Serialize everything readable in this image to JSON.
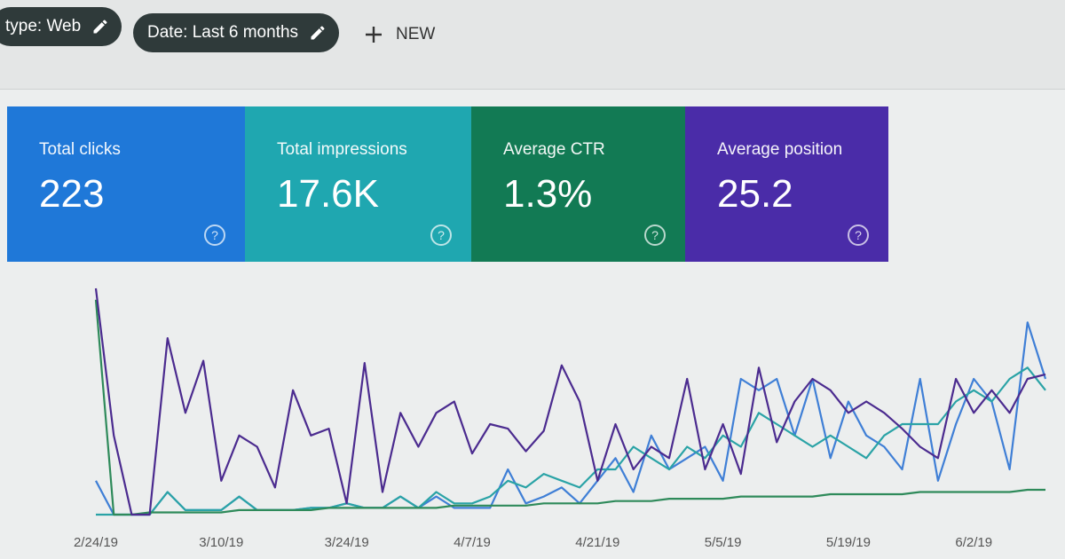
{
  "filters": [
    {
      "label": "type: Web"
    },
    {
      "label": "Date: Last 6 months"
    }
  ],
  "new_button": "NEW",
  "metrics": [
    {
      "label": "Total clicks",
      "value": "223",
      "color": "#1f78d8"
    },
    {
      "label": "Total impressions",
      "value": "17.6K",
      "color": "#1fa7b0"
    },
    {
      "label": "Average CTR",
      "value": "1.3%",
      "color": "#127a54"
    },
    {
      "label": "Average position",
      "value": "25.2",
      "color": "#4a2ca8"
    }
  ],
  "chart_data": {
    "type": "line",
    "categories": [
      "2/24/19",
      null,
      null,
      null,
      null,
      null,
      null,
      "3/10/19",
      null,
      null,
      null,
      null,
      null,
      null,
      "3/24/19",
      null,
      null,
      null,
      null,
      null,
      null,
      "4/7/19",
      null,
      null,
      null,
      null,
      null,
      null,
      "4/21/19",
      null,
      null,
      null,
      null,
      null,
      null,
      "5/5/19",
      null,
      null,
      null,
      null,
      null,
      null,
      "5/19/19",
      null,
      null,
      null,
      null,
      null,
      null,
      "6/2/19",
      null,
      null,
      null,
      null
    ],
    "ylim": [
      0,
      100
    ],
    "series": [
      {
        "name": "Total clicks",
        "color": "#3f7fd6",
        "values": [
          15,
          0,
          0,
          0,
          10,
          2,
          2,
          2,
          8,
          2,
          2,
          2,
          3,
          3,
          5,
          3,
          3,
          8,
          3,
          8,
          3,
          3,
          3,
          20,
          5,
          8,
          12,
          5,
          15,
          25,
          10,
          35,
          20,
          25,
          30,
          15,
          60,
          55,
          60,
          35,
          60,
          25,
          50,
          35,
          30,
          20,
          60,
          15,
          40,
          60,
          50,
          20,
          85,
          60
        ]
      },
      {
        "name": "Total impressions",
        "color": "#2aa3a6",
        "values": [
          0,
          0,
          0,
          0,
          10,
          2,
          2,
          2,
          8,
          2,
          2,
          2,
          3,
          3,
          5,
          3,
          3,
          8,
          3,
          10,
          5,
          5,
          8,
          15,
          12,
          18,
          15,
          12,
          20,
          20,
          30,
          25,
          20,
          30,
          25,
          35,
          30,
          45,
          40,
          35,
          30,
          35,
          30,
          25,
          35,
          40,
          40,
          40,
          50,
          55,
          50,
          60,
          65,
          55
        ]
      },
      {
        "name": "Average CTR",
        "color": "#2e8a5a",
        "values": [
          95,
          0,
          0,
          1,
          1,
          1,
          1,
          1,
          2,
          2,
          2,
          2,
          2,
          3,
          3,
          3,
          3,
          3,
          3,
          3,
          4,
          4,
          4,
          4,
          4,
          5,
          5,
          5,
          5,
          6,
          6,
          6,
          7,
          7,
          7,
          7,
          8,
          8,
          8,
          8,
          8,
          9,
          9,
          9,
          9,
          9,
          10,
          10,
          10,
          10,
          10,
          10,
          11,
          11
        ]
      },
      {
        "name": "Average position",
        "color": "#4b2b8f",
        "values": [
          100,
          35,
          0,
          0,
          78,
          45,
          68,
          15,
          35,
          30,
          12,
          55,
          35,
          38,
          5,
          67,
          10,
          45,
          30,
          45,
          50,
          27,
          40,
          38,
          28,
          37,
          66,
          50,
          15,
          40,
          20,
          30,
          25,
          60,
          20,
          40,
          18,
          65,
          32,
          50,
          60,
          55,
          45,
          50,
          45,
          38,
          30,
          25,
          60,
          45,
          55,
          45,
          60,
          62
        ]
      }
    ]
  }
}
